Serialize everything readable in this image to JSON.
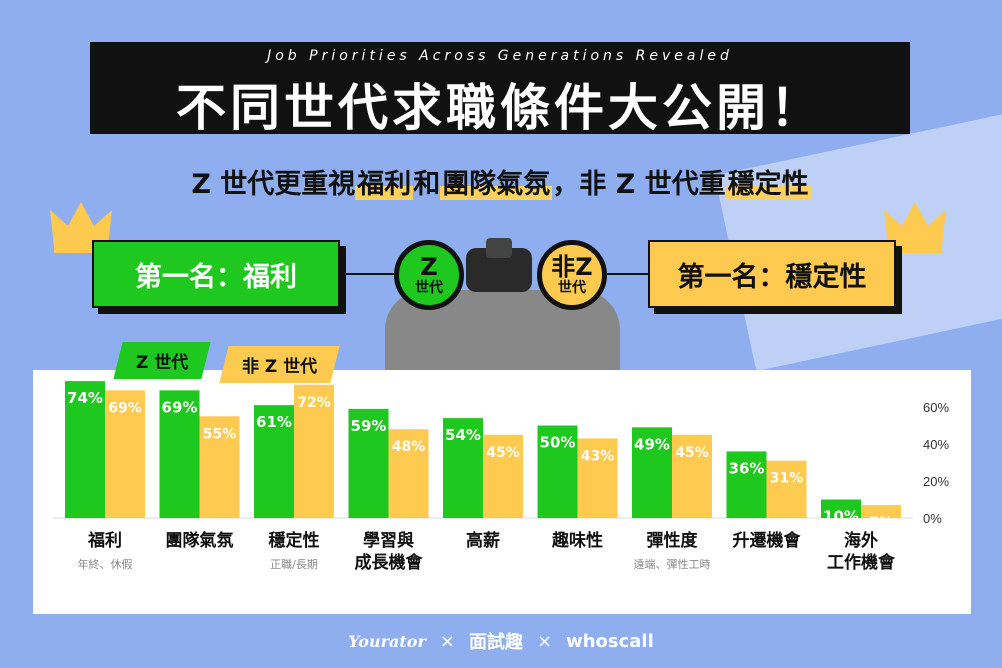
{
  "header": {
    "subtitle_en": "Job Priorities Across Generations Revealed",
    "title": "不同世代求職條件大公開！"
  },
  "subheadline": {
    "part1": "Z 世代更重視",
    "hl1": "福利",
    "part2": "和",
    "hl2": "團隊氣氛",
    "part3": "，非 Z 世代重",
    "hl3": "穩定性"
  },
  "rank": {
    "left": "第一名：福利",
    "right": "第一名：穩定性"
  },
  "binoculars": {
    "left_top": "Z",
    "left_bottom": "世代",
    "right_top": "非Z",
    "right_bottom": "世代"
  },
  "legend": {
    "gen_z": "Z 世代",
    "non_z": "非 Z 世代"
  },
  "colors": {
    "gen_z": "#1ec81e",
    "non_z": "#ffca4f",
    "background": "#8faef0"
  },
  "chart_data": {
    "type": "bar",
    "categories": [
      "福利",
      "團隊氣氛",
      "穩定性",
      "學習與成長機會",
      "高薪",
      "趣味性",
      "彈性度",
      "升遷機會",
      "海外工作機會"
    ],
    "category_lines": [
      [
        "福利"
      ],
      [
        "團隊氣氛"
      ],
      [
        "穩定性"
      ],
      [
        "學習與",
        "成長機會"
      ],
      [
        "高薪"
      ],
      [
        "趣味性"
      ],
      [
        "彈性度"
      ],
      [
        "升遷機會"
      ],
      [
        "海外",
        "工作機會"
      ]
    ],
    "category_notes": [
      "年終、休假",
      "",
      "正職/長期",
      "",
      "",
      "",
      "遠端、彈性工時",
      "",
      ""
    ],
    "series": [
      {
        "name": "Z 世代",
        "values": [
          74,
          69,
          61,
          59,
          54,
          50,
          49,
          36,
          10
        ]
      },
      {
        "name": "非 Z 世代",
        "values": [
          69,
          55,
          72,
          48,
          45,
          43,
          45,
          31,
          7
        ]
      }
    ],
    "ylim": [
      0,
      80
    ],
    "yticks": [
      0,
      20,
      40,
      60
    ],
    "ytick_labels": [
      "0%",
      "20%",
      "40%",
      "60%"
    ],
    "value_suffix": "%",
    "grid": false
  },
  "footer": {
    "logo1": "Yourator",
    "sep1": "×",
    "logo2": "面試趣",
    "sep2": "×",
    "logo3": "whoscall"
  }
}
